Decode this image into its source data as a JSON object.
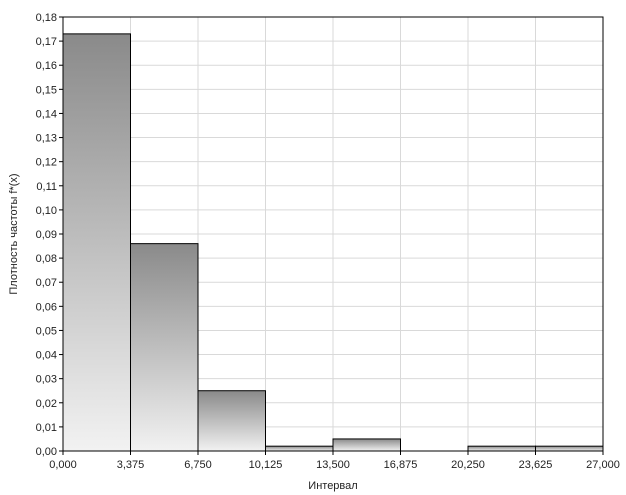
{
  "chart_data": {
    "type": "bar",
    "title": "",
    "xlabel": "Интервал",
    "ylabel": "Плотность частоты f*(x)",
    "grid": true,
    "legend": "none",
    "xlim": [
      0,
      27
    ],
    "ylim": [
      0,
      0.18
    ],
    "x_ticks": [
      0,
      3.375,
      6.75,
      10.125,
      13.5,
      16.875,
      20.25,
      23.625,
      27
    ],
    "x_tick_labels": [
      "0,000",
      "3,375",
      "6,750",
      "10,125",
      "13,500",
      "16,875",
      "20,250",
      "23,625",
      "27,000"
    ],
    "y_ticks": [
      0,
      0.01,
      0.02,
      0.03,
      0.04,
      0.05,
      0.06,
      0.07,
      0.08,
      0.09,
      0.1,
      0.11,
      0.12,
      0.13,
      0.14,
      0.15,
      0.16,
      0.17,
      0.18
    ],
    "y_tick_labels": [
      "0,00",
      "0,01",
      "0,02",
      "0,03",
      "0,04",
      "0,05",
      "0,06",
      "0,07",
      "0,08",
      "0,09",
      "0,10",
      "0,11",
      "0,12",
      "0,13",
      "0,14",
      "0,15",
      "0,16",
      "0,17",
      "0,18"
    ],
    "bins": [
      {
        "start": 0,
        "end": 3.375,
        "value": 0.173
      },
      {
        "start": 3.375,
        "end": 6.75,
        "value": 0.086
      },
      {
        "start": 6.75,
        "end": 10.125,
        "value": 0.025
      },
      {
        "start": 10.125,
        "end": 13.5,
        "value": 0.002
      },
      {
        "start": 13.5,
        "end": 16.875,
        "value": 0.005
      },
      {
        "start": 16.875,
        "end": 20.25,
        "value": 0
      },
      {
        "start": 20.25,
        "end": 23.625,
        "value": 0.002
      },
      {
        "start": 23.625,
        "end": 27,
        "value": 0.002
      }
    ],
    "colors": {
      "bar_top": "#8a8a8a",
      "bar_bottom": "#f2f2f2",
      "bar_stroke": "#000000",
      "grid": "#d9d9d9",
      "axis": "#000000"
    }
  }
}
